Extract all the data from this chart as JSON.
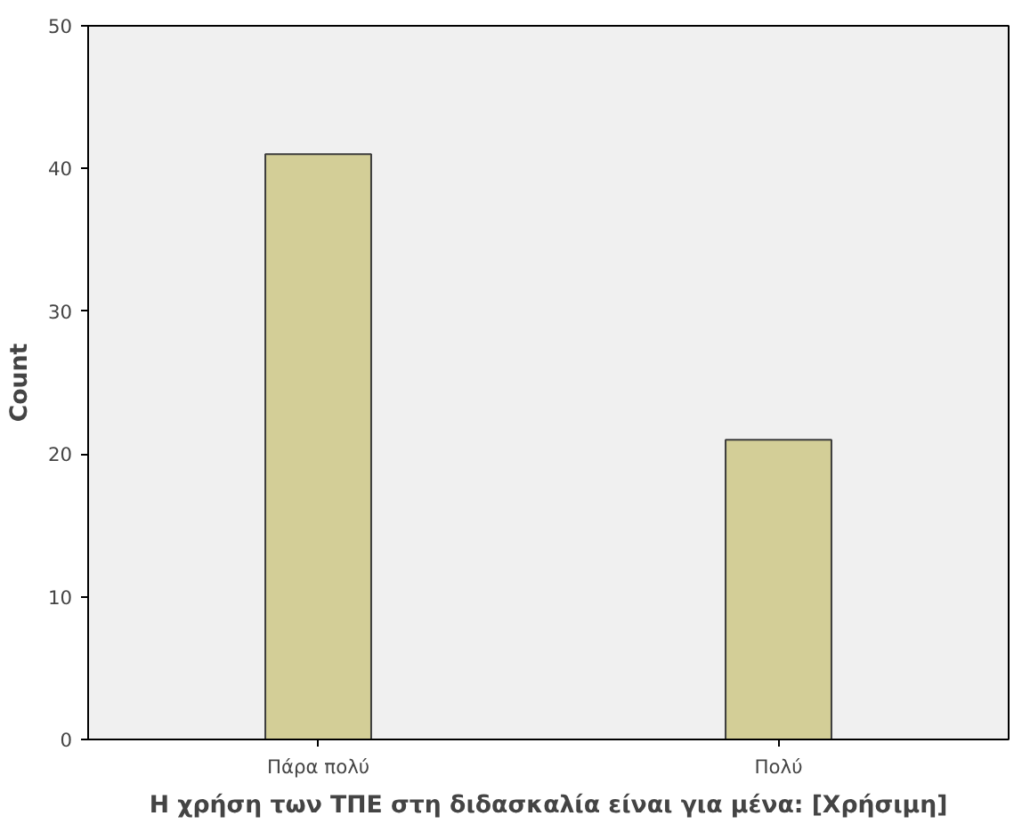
{
  "chart_data": {
    "type": "bar",
    "categories": [
      "Πάρα πολύ",
      "Πολύ"
    ],
    "values": [
      41,
      21
    ],
    "color": "#d3ce97",
    "xlabel": "Η χρήση των ΤΠΕ στη διδασκαλία είναι για μένα: [Χρήσιμη]",
    "ylabel": "Count",
    "ylim": [
      0,
      50
    ],
    "yticks": [
      0,
      10,
      20,
      30,
      40,
      50
    ],
    "grid": false
  }
}
